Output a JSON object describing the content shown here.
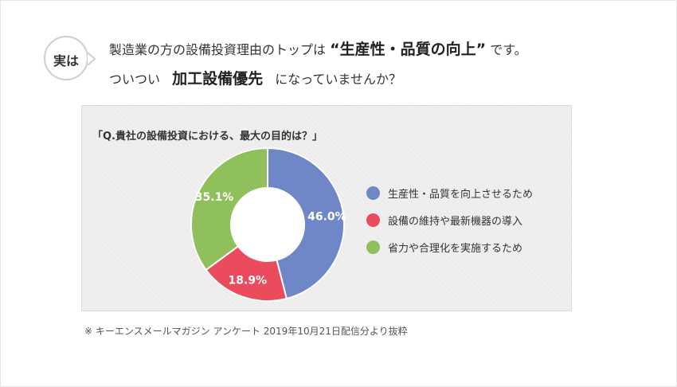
{
  "badge": {
    "text": "実は"
  },
  "headline": {
    "line1_pre": "製造業の方の設備投資理由のトップは",
    "line1_em": "“生産性・品質の向上”",
    "line1_post": "です。",
    "line2_pre": "ついつい",
    "line2_em": "加工設備優先",
    "line2_post": "になっていませんか？"
  },
  "chart_data": {
    "type": "pie",
    "title": "「Q.貴社の設備投資における、最大の目的は？」",
    "donut": true,
    "slices": [
      {
        "label": "生産性・品質を向上させるため",
        "value": 46.0,
        "display": "46.0%",
        "color": "#6f86c7"
      },
      {
        "label": "設備の維持や最新機器の導入",
        "value": 18.9,
        "display": "18.9%",
        "color": "#ea4c5e"
      },
      {
        "label": "省力や合理化を実施するため",
        "value": 35.1,
        "display": "35.1%",
        "color": "#8fc05c"
      }
    ],
    "legend_position": "right"
  },
  "footnote": "※ キーエンスメールマガジン アンケート 2019年10月21日配信分より抜粋"
}
